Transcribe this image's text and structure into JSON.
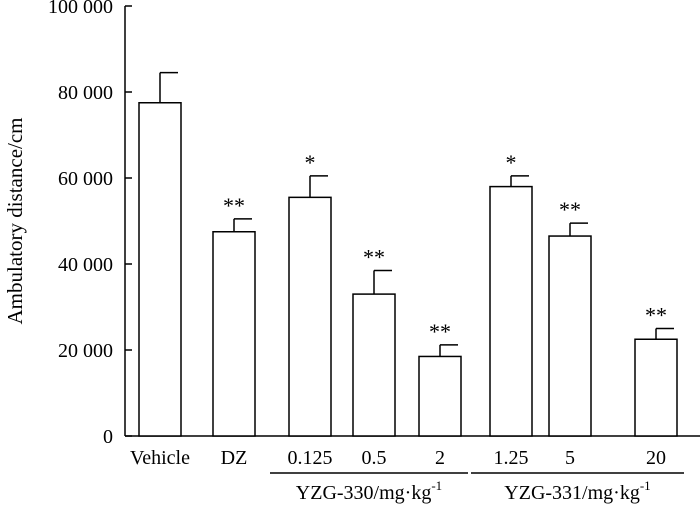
{
  "chart_data": {
    "type": "bar",
    "ylabel": "Ambulatory distance/cm",
    "ylim": [
      0,
      100000
    ],
    "yticks": [
      0,
      20000,
      40000,
      60000,
      80000,
      100000
    ],
    "ytick_labels": [
      "0",
      "20 000",
      "40 000",
      "60 000",
      "80 000",
      "100 000"
    ],
    "categories": [
      "Vehicle",
      "DZ",
      "0.125",
      "0.5",
      "2",
      "1.25",
      "5",
      "20"
    ],
    "values": [
      77500,
      47500,
      55500,
      33000,
      18500,
      58000,
      46500,
      22500
    ],
    "errors": [
      7000,
      3000,
      5000,
      5500,
      2700,
      2500,
      3000,
      2500
    ],
    "significance": [
      "",
      "**",
      "*",
      "**",
      "**",
      "*",
      "**",
      "**"
    ],
    "groups": [
      {
        "label": "YZG-330/mg·kg",
        "superscript": "-1",
        "first": 2,
        "last": 4
      },
      {
        "label": "YZG-331/mg·kg",
        "superscript": "-1",
        "first": 5,
        "last": 7
      }
    ],
    "bar_fill": "#ffffff",
    "bar_stroke": "#000000"
  }
}
